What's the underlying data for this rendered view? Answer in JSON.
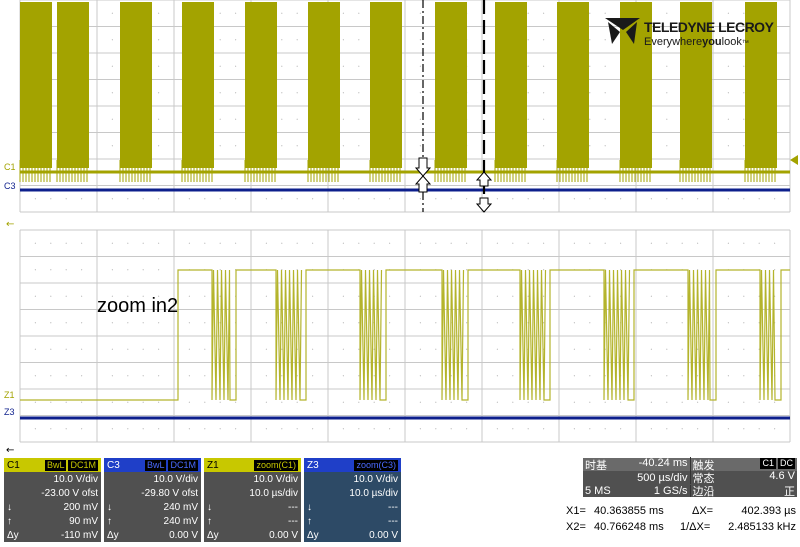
{
  "logo": {
    "brand": "TELEDYNE LECROY",
    "tagline_pre": "Everywhere",
    "tagline_bold": "you",
    "tagline_post": "look",
    "tm": "™"
  },
  "traces": {
    "top": {
      "c1_label": "C1",
      "c3_label": "C3"
    },
    "bottom": {
      "z1_label": "Z1",
      "z3_label": "Z3"
    }
  },
  "annotation": "zoom in2",
  "colors": {
    "c1": "#a3a300",
    "c3": "#0d1f8c",
    "zoom_trace": "#b4b42c",
    "grid": "#cccccc"
  },
  "panels": [
    {
      "name": "C1",
      "badges": [
        "BwL",
        "DC1M"
      ],
      "vdiv": "10.0 V/div",
      "offset": "-23.00 V ofst",
      "r1l": "↓",
      "r1v": "200 mV",
      "r2l": "↑",
      "r2v": "90 mV",
      "r3l": "Δy",
      "r3v": "-110 mV"
    },
    {
      "name": "C3",
      "badges": [
        "BwL",
        "DC1M"
      ],
      "vdiv": "10.0 V/div",
      "offset": "-29.80 V ofst",
      "r1l": "↓",
      "r1v": "240 mV",
      "r2l": "↑",
      "r2v": "240 mV",
      "r3l": "Δy",
      "r3v": "0.00 V"
    },
    {
      "name": "Z1",
      "badges": [
        "zoom(C1)"
      ],
      "vdiv": "10.0 V/div",
      "offset": "10.0 µs/div",
      "r1l": "↓",
      "r1v": "---",
      "r2l": "↑",
      "r2v": "---",
      "r3l": "Δy",
      "r3v": "0.00 V"
    },
    {
      "name": "Z3",
      "badges": [
        "zoom(C3)"
      ],
      "vdiv": "10.0 V/div",
      "offset": "10.0 µs/div",
      "r1l": "↓",
      "r1v": "---",
      "r2l": "↑",
      "r2v": "---",
      "r3l": "Δy",
      "r3v": "0.00 V"
    }
  ],
  "timebase": {
    "label": "时基",
    "delay": "-40.24 ms",
    "per_div": "500 µs/div",
    "ms": "5 MS",
    "rate": "1 GS/s"
  },
  "trigger": {
    "label": "触发",
    "badges": [
      "C1",
      "DC"
    ],
    "mode": "常态",
    "level": "4.6 V",
    "slope_label": "边沿",
    "slope": "正"
  },
  "cursors": {
    "x1_label": "X1=",
    "x1": "40.363855 ms",
    "dx_label": "ΔX=",
    "dx": "402.393 µs",
    "x2_label": "X2=",
    "x2": "40.766248 ms",
    "inv_label": "1/ΔX=",
    "inv": "2.485133 kHz"
  }
}
